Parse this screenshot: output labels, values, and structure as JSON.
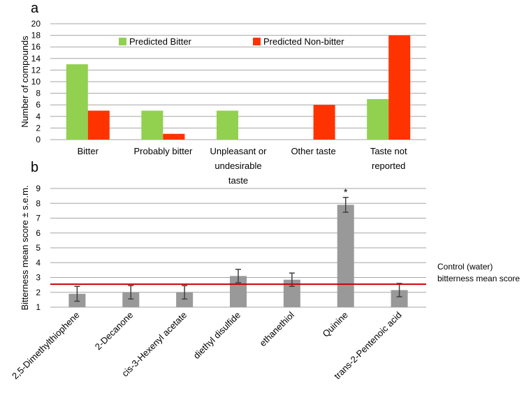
{
  "chart_data": [
    {
      "panel_label": "a",
      "type": "bar",
      "title": "",
      "xlabel": "",
      "ylabel": "Number of compounds",
      "ylim": [
        0,
        20
      ],
      "yticks": [
        0,
        2,
        4,
        6,
        8,
        10,
        12,
        14,
        16,
        18,
        20
      ],
      "grid": true,
      "legend_position": "top",
      "categories": [
        [
          "Bitter"
        ],
        [
          "Probably bitter"
        ],
        [
          "Unpleasant or",
          "undesirable",
          "taste"
        ],
        [
          "Other taste"
        ],
        [
          "Taste not",
          "reported"
        ]
      ],
      "series": [
        {
          "name": "Predicted Bitter",
          "color": "#92d050",
          "values": [
            13,
            5,
            5,
            0,
            7
          ]
        },
        {
          "name": "Predicted Non-bitter",
          "color": "#ff3300",
          "values": [
            5,
            1,
            0,
            6,
            18
          ]
        }
      ]
    },
    {
      "panel_label": "b",
      "type": "bar",
      "title": "",
      "xlabel": "",
      "ylabel": "Bitterness  mean  score ± s.e.m.",
      "ylim": [
        1,
        9
      ],
      "yticks": [
        1,
        2,
        3,
        4,
        5,
        6,
        7,
        8,
        9
      ],
      "grid": true,
      "bar_color": "#999999",
      "categories": [
        "2,5-Dimethylthiophene",
        "2-Decanone",
        "cis-3-Hexenyl acetate",
        "diethyl disulfide",
        "ethanethiol",
        "Quinine",
        "trans-2-Pentenoic acid"
      ],
      "values": [
        1.9,
        2.0,
        2.0,
        3.1,
        2.85,
        7.9,
        2.15
      ],
      "errors": [
        0.5,
        0.45,
        0.45,
        0.45,
        0.45,
        0.5,
        0.45
      ],
      "significance": [
        "",
        "",
        "",
        "",
        "",
        "*",
        ""
      ],
      "reference_line": {
        "value": 2.55,
        "color": "#cc0000",
        "label_lines": [
          "Control (water)",
          "bitterness  mean score"
        ]
      }
    }
  ]
}
